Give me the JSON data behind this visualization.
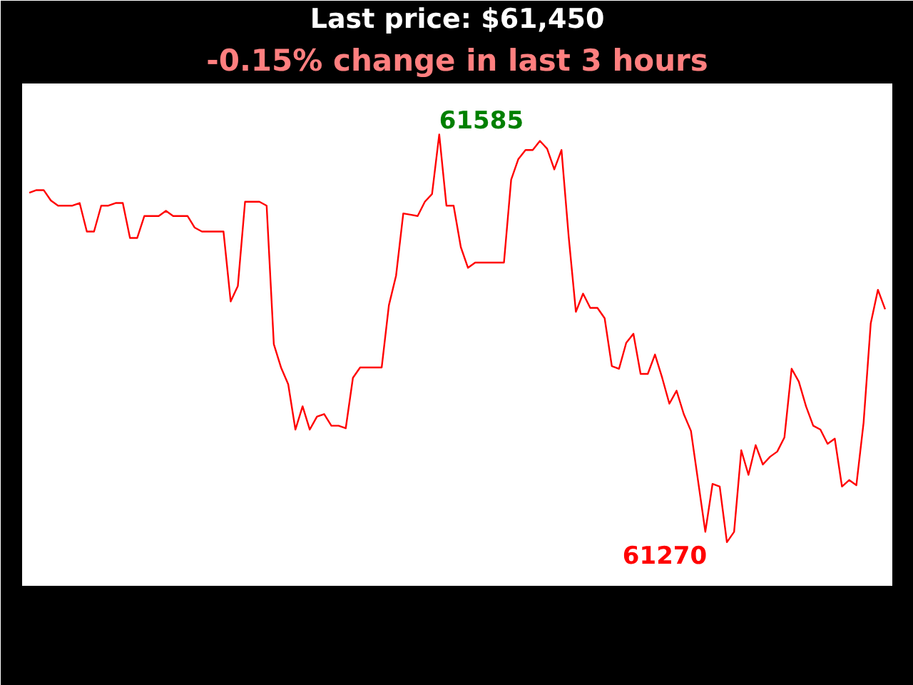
{
  "chart_data": {
    "type": "line",
    "title": "Last price: $61,450",
    "subtitle": "-0.15% change in last 3 hours",
    "categories": [
      null,
      null,
      null,
      null,
      null,
      null,
      null,
      null,
      null,
      null,
      null,
      null,
      null,
      null,
      null,
      null,
      null,
      null,
      null,
      null,
      null,
      null,
      null,
      null,
      null,
      null,
      null,
      null,
      null,
      null,
      null,
      null,
      null,
      null,
      null,
      null,
      null,
      null,
      null,
      null,
      null,
      null,
      null,
      null,
      null,
      null,
      null,
      null,
      null,
      null,
      null,
      null,
      null,
      null,
      null,
      null,
      null,
      null,
      null,
      null,
      null,
      null,
      null,
      null,
      null,
      null,
      null,
      null,
      null,
      null,
      null,
      null,
      null,
      null,
      null,
      null,
      null,
      null,
      null,
      null,
      null,
      null,
      null,
      null,
      null,
      null,
      null,
      null,
      null,
      null,
      null,
      null,
      null,
      null,
      null,
      null,
      null,
      null,
      null,
      null,
      null,
      null,
      null,
      null,
      null,
      null,
      null,
      null,
      null,
      null,
      null,
      null,
      null,
      null,
      null,
      null,
      null,
      null,
      null,
      null
    ],
    "series": [
      {
        "color": "#ff0000",
        "values": [
          61540,
          61542,
          61542,
          61534,
          61530,
          61530,
          61530,
          61532,
          61510,
          61510,
          61530,
          61530,
          61532,
          61532,
          61505,
          61505,
          61522,
          61522,
          61522,
          61526,
          61522,
          61522,
          61522,
          61513,
          61510,
          61510,
          61510,
          61510,
          61456,
          61468,
          61533,
          61533,
          61533,
          61530,
          61423,
          61405,
          61392,
          61357,
          61375,
          61357,
          61367,
          61369,
          61360,
          61360,
          61358,
          61397,
          61405,
          61405,
          61405,
          61405,
          61453,
          61476,
          61524,
          61523,
          61522,
          61533,
          61539,
          61585,
          61530,
          61530,
          61498,
          61482,
          61486,
          61486,
          61486,
          61486,
          61486,
          61550,
          61566,
          61573,
          61573,
          61580,
          61574,
          61558,
          61573,
          61506,
          61448,
          61462,
          61451,
          61451,
          61443,
          61406,
          61404,
          61424,
          61431,
          61400,
          61400,
          61415,
          61397,
          61377,
          61387,
          61369,
          61356,
          61317,
          61278,
          61315,
          61313,
          61270,
          61278,
          61341,
          61322,
          61345,
          61330,
          61336,
          61340,
          61351,
          61404,
          61394,
          61375,
          61360,
          61357,
          61346,
          61350,
          61313,
          61318,
          61314,
          61362,
          61439,
          61465,
          61450
        ],
        "value_labels": [
          null,
          null,
          null,
          null,
          null,
          null,
          null,
          null,
          null,
          null,
          null,
          null,
          null,
          null,
          null,
          null,
          null,
          null,
          null,
          null,
          null,
          null,
          null,
          null,
          null,
          null,
          null,
          null,
          null,
          null,
          null,
          null,
          null,
          null,
          null,
          null,
          null,
          null,
          null,
          null,
          null,
          null,
          null,
          null,
          null,
          null,
          null,
          null,
          null,
          null,
          null,
          null,
          null,
          null,
          null,
          null,
          null,
          "61585",
          null,
          null,
          null,
          null,
          null,
          null,
          null,
          null,
          null,
          null,
          null,
          null,
          null,
          null,
          null,
          null,
          null,
          null,
          null,
          null,
          null,
          null,
          null,
          null,
          null,
          null,
          null,
          null,
          null,
          null,
          null,
          null,
          null,
          null,
          null,
          null,
          null,
          null,
          null,
          "61270",
          null,
          null,
          null,
          null,
          null,
          null,
          null,
          null,
          null,
          null,
          null,
          null,
          null,
          null,
          null,
          null,
          null,
          null,
          null,
          null,
          null,
          null
        ]
      }
    ],
    "tick_labels": false,
    "grid": false
  }
}
